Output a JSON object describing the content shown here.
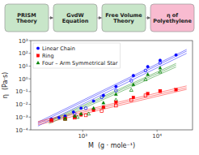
{
  "chart_data": {
    "type": "scatter",
    "annotations": [
      {
        "text": "PRISM\nTheory",
        "color": "#c8e6c9"
      },
      {
        "text": "GvdW\nEquation",
        "color": "#c8e6c9"
      },
      {
        "text": "Free Volume\nTheory",
        "color": "#c8e6c9"
      },
      {
        "text": "η of\nPolyethylene",
        "color": "#f8bbd0"
      }
    ],
    "x_label": "M  (g · mole⁻¹)",
    "y_label": "η  (Pa·s)",
    "log": true,
    "grid": false,
    "legend": "upper left",
    "xlim": [
      200,
      30000
    ],
    "ylim": [
      0.0001,
      1000.0
    ],
    "xticks": [
      {
        "value": 1000,
        "label": "10³"
      },
      {
        "value": 10000,
        "label": "10⁴"
      }
    ],
    "yticks": [
      {
        "value": 0.0001,
        "label": "10⁻⁴"
      },
      {
        "value": 0.001,
        "label": "10⁻³"
      },
      {
        "value": 0.01,
        "label": "10⁻²"
      },
      {
        "value": 0.1,
        "label": "10⁻¹"
      },
      {
        "value": 1,
        "label": "10⁰"
      },
      {
        "value": 10,
        "label": "10¹"
      },
      {
        "value": 100,
        "label": "10²"
      },
      {
        "value": 1000,
        "label": "10³"
      }
    ],
    "series": [
      {
        "type": "line",
        "color": "blue",
        "x": [
          250,
          25000
        ],
        "values": [
          0.0003,
          150.0
        ]
      },
      {
        "type": "line",
        "color": "blue",
        "x": [
          250,
          25000
        ],
        "values": [
          0.0002,
          100.0
        ]
      },
      {
        "type": "line",
        "color": "blue",
        "x": [
          250,
          25000
        ],
        "values": [
          0.0004,
          200.0
        ]
      },
      {
        "type": "line",
        "color": "red",
        "x": [
          250,
          25000
        ],
        "values": [
          0.00035,
          0.2
        ]
      },
      {
        "type": "line",
        "color": "red",
        "x": [
          250,
          25000
        ],
        "values": [
          0.00025,
          0.15
        ]
      },
      {
        "type": "line",
        "color": "red",
        "x": [
          250,
          25000
        ],
        "values": [
          0.00045,
          0.28
        ]
      },
      {
        "type": "line",
        "color": "green",
        "x": [
          350,
          18000
        ],
        "values": [
          0.0004,
          12.0
        ]
      },
      {
        "type": "line",
        "color": "green",
        "x": [
          350,
          18000
        ],
        "values": [
          0.0003,
          8.5
        ]
      },
      {
        "type": "line",
        "color": "green",
        "x": [
          350,
          18000
        ],
        "values": [
          0.0005,
          16.0
        ]
      },
      {
        "type": "scatter",
        "name": "Linear Chain",
        "color": "blue",
        "marker": "circle",
        "x": [
          380,
          480,
          580,
          750,
          950,
          1400,
          1900,
          2800,
          4800,
          7500,
          11000,
          18000
        ],
        "values": [
          0.0007,
          0.0009,
          0.0012,
          0.0025,
          0.005,
          0.018,
          0.05,
          0.25,
          1.8,
          9.0,
          28.0,
          75.0
        ]
      },
      {
        "type": "scatter",
        "name": "Ring",
        "color": "red",
        "marker": "square",
        "x": [
          380,
          580,
          780,
          950,
          1400,
          1900,
          2800,
          4800,
          7500,
          11000,
          18000
        ],
        "values": [
          0.0006,
          0.0008,
          0.001,
          0.0015,
          0.0035,
          0.006,
          0.015,
          0.035,
          0.07,
          0.11,
          0.14
        ]
      },
      {
        "type": "scatter",
        "name": "Four – Arm Symmetrical Star",
        "color": "green",
        "marker": "triangle",
        "x": [
          580,
          780,
          950,
          1400,
          1900,
          2800,
          4800,
          7500,
          11000
        ],
        "values": [
          0.0008,
          0.0012,
          0.0018,
          0.005,
          0.013,
          0.06,
          0.35,
          2.2,
          7.0
        ]
      },
      {
        "type": "scatter",
        "color": "blue",
        "marker": "open-circle",
        "x": [
          380,
          580,
          780,
          1100,
          1800,
          2800,
          4500,
          7000,
          11000
        ],
        "values": [
          0.0006,
          0.001,
          0.0018,
          0.005,
          0.035,
          0.12,
          0.7,
          4.5,
          18.0
        ]
      },
      {
        "type": "scatter",
        "color": "red",
        "marker": "open-square",
        "x": [
          380,
          580,
          780,
          1100,
          1800,
          2800,
          4500,
          7000,
          11000
        ],
        "values": [
          0.0005,
          0.0007,
          0.0009,
          0.0014,
          0.003,
          0.008,
          0.022,
          0.05,
          0.11
        ]
      },
      {
        "type": "scatter",
        "color": "green",
        "marker": "open-triangle",
        "x": [
          580,
          850,
          1200,
          1900,
          2800,
          4500,
          7000,
          11000
        ],
        "values": [
          0.0007,
          0.001,
          0.0018,
          0.006,
          0.022,
          0.13,
          0.9,
          3.5
        ]
      }
    ]
  }
}
